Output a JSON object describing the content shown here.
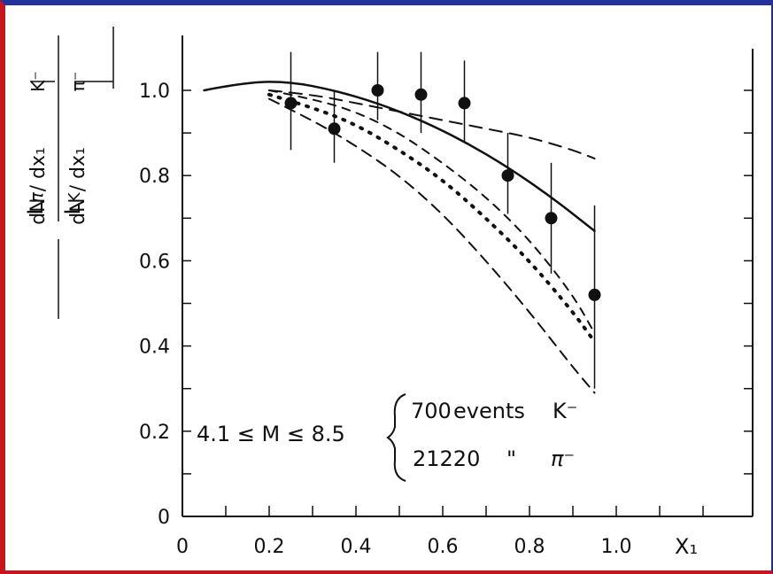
{
  "colors": {
    "border_red": "#c8141c",
    "border_blue": "#24339a",
    "ink": "#111111"
  },
  "chart_data": {
    "type": "scatter",
    "title": "",
    "xlabel": "X₁",
    "ylabel": {
      "left_top": "L",
      "left_top_sub": "π",
      "left_bottom": "L",
      "left_bottom_sub": "K",
      "right_top_num": "dN / dx₁",
      "right_top_sup": "K⁻",
      "right_bottom_num": "dN / dx₁",
      "right_bottom_sup": "π⁻"
    },
    "xlim": [
      0,
      1.3
    ],
    "ylim": [
      0,
      1.12
    ],
    "x_ticks": [
      0,
      0.2,
      0.4,
      0.6,
      0.8,
      1.0
    ],
    "x_tick_labels": [
      "0",
      "0.2",
      "0.4",
      "0.6",
      "0.8",
      "1.0"
    ],
    "y_ticks": [
      0,
      0.2,
      0.4,
      0.6,
      0.8,
      1.0
    ],
    "y_tick_labels": [
      "0",
      "0.2",
      "0.4",
      "0.6",
      "0.8",
      "1.0"
    ],
    "grid": false,
    "points": [
      {
        "x": 0.25,
        "y": 0.97,
        "err_low": 0.86,
        "err_high": 1.09
      },
      {
        "x": 0.35,
        "y": 0.91,
        "err_low": 0.83,
        "err_high": 1.0
      },
      {
        "x": 0.45,
        "y": 1.0,
        "err_low": 0.93,
        "err_high": 1.09
      },
      {
        "x": 0.55,
        "y": 0.99,
        "err_low": 0.9,
        "err_high": 1.09
      },
      {
        "x": 0.65,
        "y": 0.97,
        "err_low": 0.88,
        "err_high": 1.07
      },
      {
        "x": 0.75,
        "y": 0.8,
        "err_low": 0.71,
        "err_high": 0.9
      },
      {
        "x": 0.85,
        "y": 0.7,
        "err_low": 0.57,
        "err_high": 0.83
      },
      {
        "x": 0.95,
        "y": 0.52,
        "err_low": 0.3,
        "err_high": 0.73
      }
    ],
    "curves": [
      {
        "style": "solid",
        "x": [
          0.05,
          0.15,
          0.25,
          0.35,
          0.45,
          0.55,
          0.65,
          0.75,
          0.85,
          0.95
        ],
        "y": [
          1.0,
          1.02,
          1.02,
          1.0,
          0.97,
          0.93,
          0.88,
          0.82,
          0.75,
          0.67
        ]
      },
      {
        "style": "long-dash",
        "x": [
          0.2,
          0.3,
          0.4,
          0.5,
          0.6,
          0.7,
          0.8,
          0.9,
          0.95
        ],
        "y": [
          1.0,
          0.99,
          0.97,
          0.95,
          0.93,
          0.91,
          0.89,
          0.86,
          0.84
        ]
      },
      {
        "style": "dash",
        "x": [
          0.2,
          0.3,
          0.4,
          0.5,
          0.6,
          0.7,
          0.8,
          0.9,
          0.95
        ],
        "y": [
          1.0,
          0.98,
          0.95,
          0.9,
          0.83,
          0.75,
          0.65,
          0.52,
          0.43
        ]
      },
      {
        "style": "dotted",
        "x": [
          0.2,
          0.3,
          0.4,
          0.5,
          0.6,
          0.7,
          0.8,
          0.9,
          0.95
        ],
        "y": [
          0.99,
          0.96,
          0.92,
          0.86,
          0.79,
          0.7,
          0.6,
          0.48,
          0.41
        ]
      },
      {
        "style": "medium-dash",
        "x": [
          0.2,
          0.3,
          0.4,
          0.5,
          0.6,
          0.7,
          0.8,
          0.9,
          0.95
        ],
        "y": [
          0.98,
          0.93,
          0.87,
          0.8,
          0.71,
          0.6,
          0.48,
          0.35,
          0.29
        ]
      }
    ],
    "annotations": {
      "range": "4.1 ≤ M ≤ 8.5",
      "line1_count": "700",
      "line1_label": "events",
      "line1_particle": "K⁻",
      "line2_count": "21220",
      "line2_ditto": "\"",
      "line2_particle": "π⁻"
    }
  }
}
